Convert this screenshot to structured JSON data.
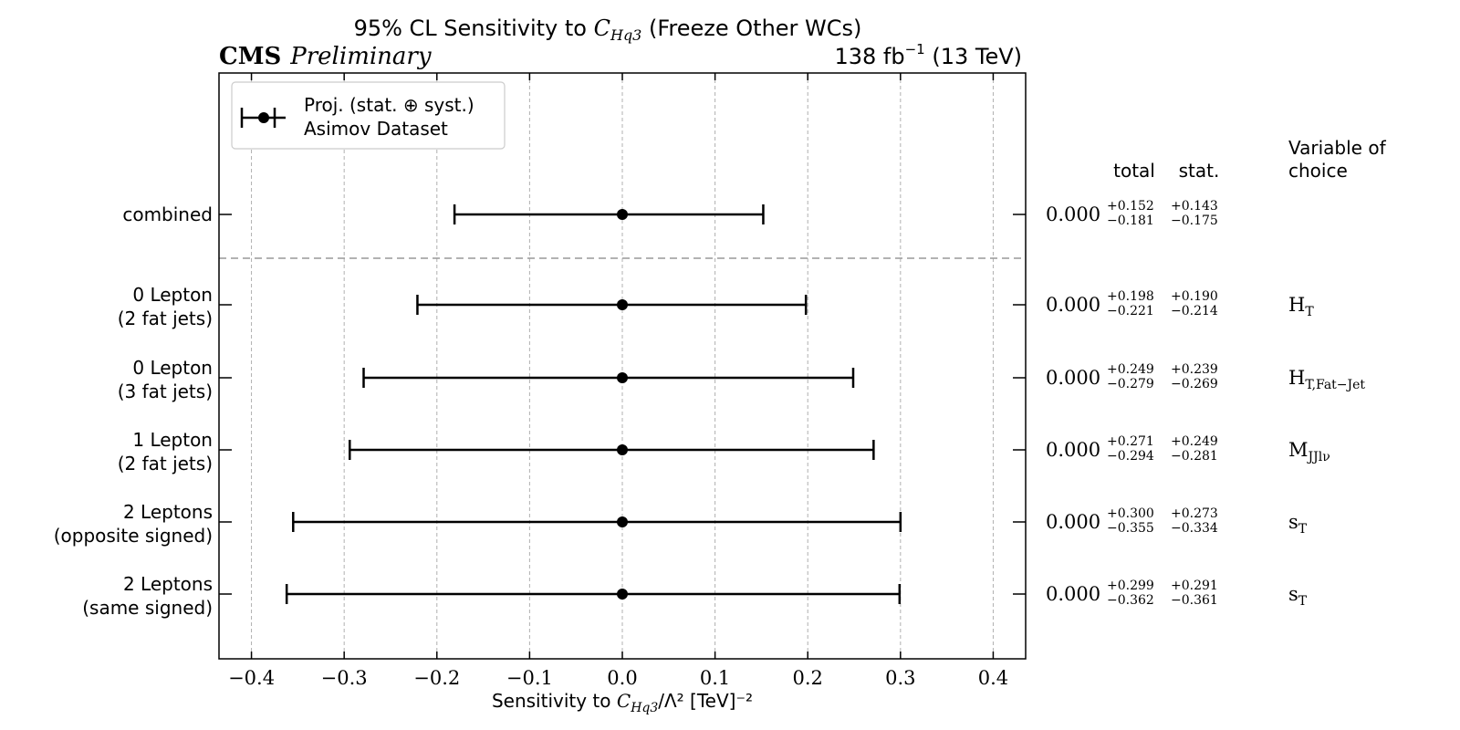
{
  "header": {
    "title_prefix": "95% CL Sensitivity to ",
    "title_var": "C",
    "title_var_sub": "Hq3",
    "title_suffix": " (Freeze Other WCs)",
    "experiment": "CMS",
    "status": "Preliminary",
    "lumi_prefix": "138 fb",
    "lumi_sup": "−1",
    "lumi_suffix": " (13 TeV)"
  },
  "legend": {
    "line1": "Proj. (stat. ⊕ syst.)",
    "line2": "Asimov Dataset"
  },
  "columns": {
    "total": "total",
    "stat": "stat.",
    "variable_line1": "Variable of",
    "variable_line2": "choice"
  },
  "xaxis": {
    "label_prefix": "Sensitivity to ",
    "label_var": "C",
    "label_var_sub": "Hq3",
    "label_suffix": "/Λ² [TeV]⁻²"
  },
  "colors": {
    "marker": "#000000",
    "grid": "#b0b0b0",
    "separator": "#999999"
  },
  "chart_data": {
    "type": "scatter",
    "xlim": [
      -0.435,
      0.435
    ],
    "xticks": [
      "−0.4",
      "−0.3",
      "−0.2",
      "−0.1",
      "0.0",
      "0.1",
      "0.2",
      "0.3",
      "0.4"
    ],
    "xtick_values": [
      -0.4,
      -0.3,
      -0.2,
      -0.1,
      0.0,
      0.1,
      0.2,
      0.3,
      0.4
    ],
    "grid": "vertical dashed",
    "legend_position": "top-left",
    "rows": [
      {
        "label1": "combined",
        "label2": "",
        "central": 0.0,
        "central_text": "0.000",
        "tot_up": "+0.152",
        "tot_dn": "−0.181",
        "stat_up": "+0.143",
        "stat_dn": "−0.175",
        "up": 0.152,
        "dn": 0.181,
        "var": "",
        "var_sub": ""
      },
      {
        "label1": "0 Lepton",
        "label2": "(2 fat jets)",
        "central": 0.0,
        "central_text": "0.000",
        "tot_up": "+0.198",
        "tot_dn": "−0.221",
        "stat_up": "+0.190",
        "stat_dn": "−0.214",
        "up": 0.198,
        "dn": 0.221,
        "var": "H",
        "var_sub": "T"
      },
      {
        "label1": "0 Lepton",
        "label2": "(3 fat jets)",
        "central": 0.0,
        "central_text": "0.000",
        "tot_up": "+0.249",
        "tot_dn": "−0.279",
        "stat_up": "+0.239",
        "stat_dn": "−0.269",
        "up": 0.249,
        "dn": 0.279,
        "var": "H",
        "var_sub": "T,Fat−Jet"
      },
      {
        "label1": "1 Lepton",
        "label2": "(2 fat jets)",
        "central": 0.0,
        "central_text": "0.000",
        "tot_up": "+0.271",
        "tot_dn": "−0.294",
        "stat_up": "+0.249",
        "stat_dn": "−0.281",
        "up": 0.271,
        "dn": 0.294,
        "var": "M",
        "var_sub": "JJlν"
      },
      {
        "label1": "2 Leptons",
        "label2": "(opposite signed)",
        "central": 0.0,
        "central_text": "0.000",
        "tot_up": "+0.300",
        "tot_dn": "−0.355",
        "stat_up": "+0.273",
        "stat_dn": "−0.334",
        "up": 0.3,
        "dn": 0.355,
        "var": "s",
        "var_sub": "T"
      },
      {
        "label1": "2 Leptons",
        "label2": "(same signed)",
        "central": 0.0,
        "central_text": "0.000",
        "tot_up": "+0.299",
        "tot_dn": "−0.362",
        "stat_up": "+0.291",
        "stat_dn": "−0.361",
        "up": 0.299,
        "dn": 0.362,
        "var": "s",
        "var_sub": "T"
      }
    ]
  }
}
